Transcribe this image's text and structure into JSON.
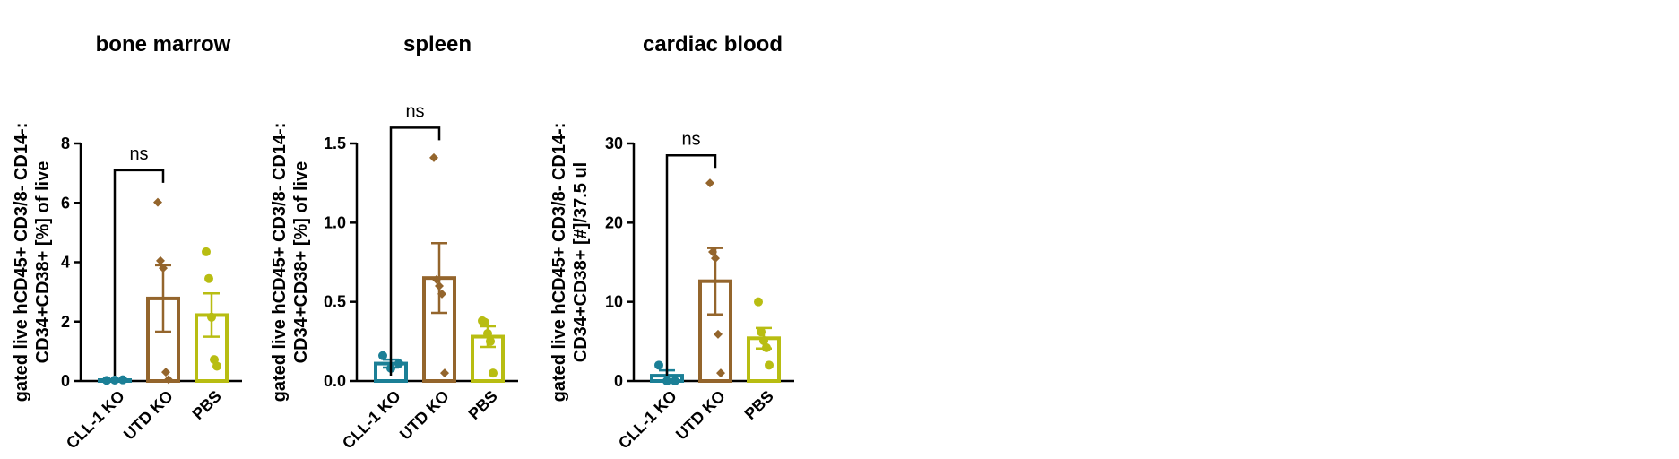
{
  "colors": {
    "CLL-1 KO": "#1b7f96",
    "UTD KO": "#94652c",
    "PBS": "#b8bd12"
  },
  "chart_data": [
    {
      "type": "bar",
      "title": "bone marrow",
      "ylabel": [
        "gated live hCD45+ CD3/8- CD14-:",
        "CD34+CD38+ [%] of live"
      ],
      "categories": [
        "CLL-1 KO",
        "UTD KO",
        "PBS"
      ],
      "ylim": [
        0,
        8
      ],
      "yticks": [
        0,
        2,
        4,
        6,
        8
      ],
      "tick_labels": [
        "0",
        "2",
        "4",
        "6",
        "8"
      ],
      "series": [
        {
          "category": "CLL-1 KO",
          "mean": 0.03,
          "sem": 0.01,
          "marker": "circle",
          "points": [
            0.02,
            0.03,
            0.04
          ]
        },
        {
          "category": "UTD KO",
          "mean": 2.78,
          "sem": 1.12,
          "marker": "diamond",
          "points": [
            6.02,
            4.05,
            3.8,
            0.3,
            0.05
          ]
        },
        {
          "category": "PBS",
          "mean": 2.22,
          "sem": 0.73,
          "marker": "circle",
          "points": [
            4.35,
            3.45,
            2.15,
            0.72,
            0.5
          ]
        }
      ],
      "significance": [
        {
          "from": "CLL-1 KO",
          "to": "UTD KO",
          "label": "ns",
          "y": 7.1
        }
      ]
    },
    {
      "type": "bar",
      "title": "spleen",
      "ylabel": [
        "gated live hCD45+ CD3/8- CD14-:",
        "CD34+CD38+ [%] of live"
      ],
      "categories": [
        "CLL-1 KO",
        "UTD KO",
        "PBS"
      ],
      "ylim": [
        0,
        1.5
      ],
      "yticks": [
        0,
        0.5,
        1.0,
        1.5
      ],
      "tick_labels": [
        "0.0",
        "0.5",
        "1.0",
        "1.5"
      ],
      "series": [
        {
          "category": "CLL-1 KO",
          "mean": 0.11,
          "sem": 0.025,
          "marker": "circle",
          "points": [
            0.16,
            0.08,
            0.11
          ]
        },
        {
          "category": "UTD KO",
          "mean": 0.65,
          "sem": 0.22,
          "marker": "diamond",
          "points": [
            1.41,
            0.64,
            0.6,
            0.55,
            0.05
          ]
        },
        {
          "category": "PBS",
          "mean": 0.28,
          "sem": 0.065,
          "marker": "circle",
          "points": [
            0.38,
            0.37,
            0.3,
            0.25,
            0.05
          ]
        }
      ],
      "significance": [
        {
          "from": "CLL-1 KO",
          "to": "UTD KO",
          "label": "ns",
          "y": 1.6
        }
      ]
    },
    {
      "type": "bar",
      "title": "cardiac blood",
      "ylabel": [
        "gated live hCD45+ CD3/8- CD14-:",
        "CD34+CD38+ [#]/37.5 ul"
      ],
      "categories": [
        "CLL-1 KO",
        "UTD KO",
        "PBS"
      ],
      "ylim": [
        0,
        30
      ],
      "yticks": [
        0,
        10,
        20,
        30
      ],
      "tick_labels": [
        "0",
        "10",
        "20",
        "30"
      ],
      "series": [
        {
          "category": "CLL-1 KO",
          "mean": 0.67,
          "sem": 0.67,
          "marker": "circle",
          "points": [
            2.0,
            0.0,
            0.0
          ]
        },
        {
          "category": "UTD KO",
          "mean": 12.6,
          "sem": 4.2,
          "marker": "diamond",
          "points": [
            25.0,
            16.3,
            15.5,
            5.9,
            1.0
          ]
        },
        {
          "category": "PBS",
          "mean": 5.4,
          "sem": 1.3,
          "marker": "circle",
          "points": [
            10.0,
            6.2,
            5.1,
            4.2,
            2.0
          ]
        }
      ],
      "significance": [
        {
          "from": "CLL-1 KO",
          "to": "UTD KO",
          "label": "ns",
          "y": 28.5
        }
      ]
    }
  ]
}
